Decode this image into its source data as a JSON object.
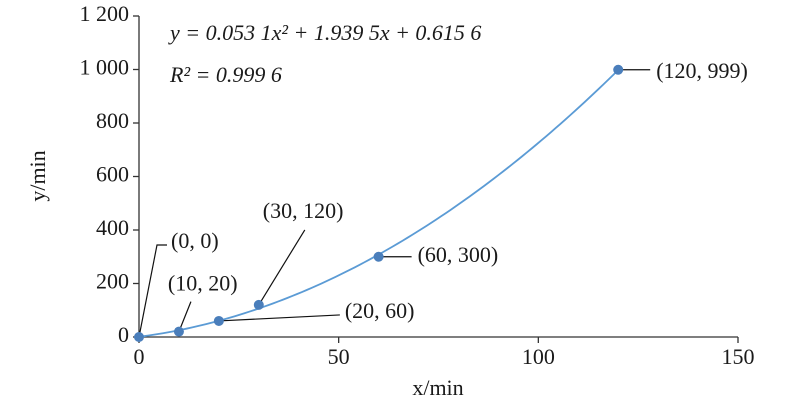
{
  "chart_data": {
    "type": "scatter",
    "annotations": [
      "y = 0.053 1x² + 1.939 5x + 0.615 6",
      "R² = 0.999 6"
    ],
    "x_label": "x/min",
    "y_label": "y/min",
    "x": [
      0,
      10,
      20,
      30,
      60,
      120
    ],
    "values": [
      0,
      20,
      60,
      120,
      300,
      999
    ],
    "value_labels": [
      "(0, 0)",
      "(10, 20)",
      "(20, 60)",
      "(30, 120)",
      "(60, 300)",
      "(120, 999)"
    ],
    "color": "#4a7ebb",
    "trendline": {
      "type": "polynomial",
      "coefficients": [
        0.0531,
        1.9395,
        0.6156
      ],
      "color": "#5b9bd5"
    },
    "xlim": [
      0,
      150
    ],
    "xticks": [
      0,
      50,
      100,
      150
    ],
    "ylim": [
      0,
      1200
    ],
    "yticks": [
      0,
      200,
      400,
      600,
      800,
      {
        "value": 1000,
        "label": "1 000"
      },
      {
        "value": 1200,
        "label": "1 200"
      }
    ],
    "grid": false
  }
}
